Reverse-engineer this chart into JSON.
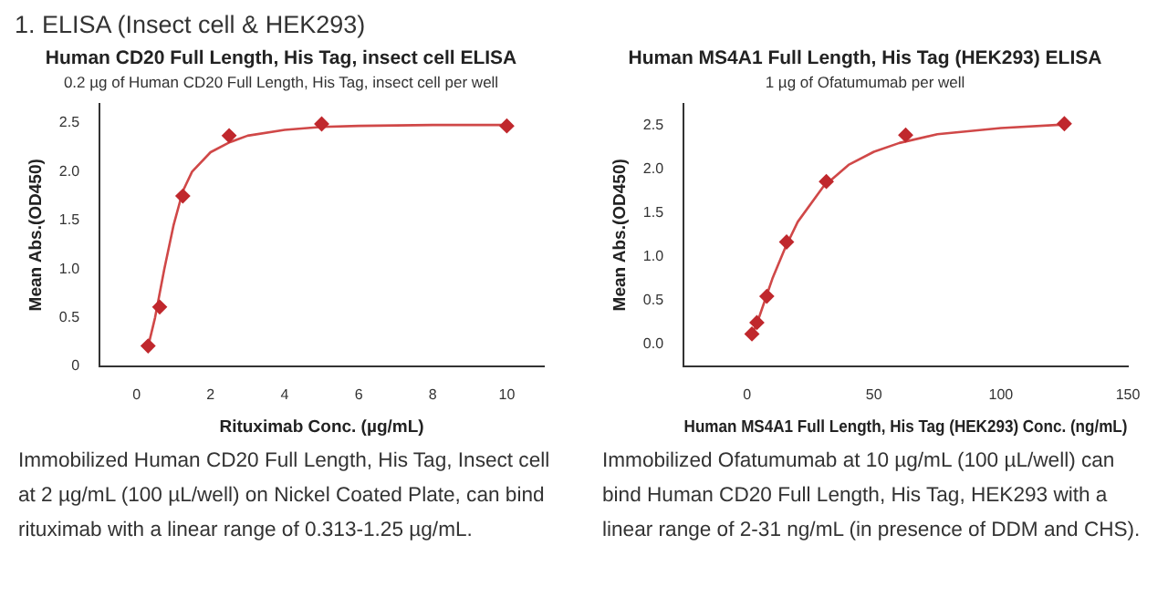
{
  "chart_data": [
    {
      "type": "scatter",
      "title": "Human CD20 Full Length, His Tag, insect cell ELISA",
      "subtitle": "0.2 µg of Human CD20 Full Length, His Tag, insect cell per well",
      "xlabel": "Rituximab Conc. (µg/mL)",
      "ylabel": "Mean Abs.(OD450)",
      "xlim": [
        -1,
        11
      ],
      "xticks": [
        0,
        2,
        4,
        6,
        8,
        10
      ],
      "ylim": [
        0,
        2.7
      ],
      "yticks": [
        0,
        {
          "value": 0.5,
          "label": "0.5"
        },
        {
          "value": 1,
          "label": "1.0"
        },
        {
          "value": 1.5,
          "label": "1.5"
        },
        {
          "value": 2,
          "label": "2.0"
        },
        {
          "value": 2.5,
          "label": "2.5"
        }
      ],
      "grid": false,
      "legend": false,
      "marker": "diamond",
      "annotations": [
        "1. ELISA (Insect cell & HEK293)",
        "Immobilized Human CD20 Full Length, His Tag, Insect cell at 2 µg/mL (100 µL/well) on Nickel Coated Plate, can bind rituximab with a linear range of 0.313-1.25 µg/mL."
      ],
      "series": [
        {
          "color": "#c0282d",
          "x": [
            0.3125,
            0.625,
            1.25,
            2.5,
            5,
            10
          ],
          "values": [
            0.21,
            0.61,
            1.75,
            2.37,
            2.49,
            2.47
          ]
        },
        {
          "type": "line",
          "marker": "none",
          "line_style": "solid",
          "color": "#d04848",
          "x": [
            0.31,
            0.5,
            0.75,
            1,
            1.25,
            1.5,
            2,
            2.5,
            3,
            4,
            5,
            6,
            8,
            10
          ],
          "values": [
            0.2,
            0.5,
            1,
            1.45,
            1.8,
            2,
            2.2,
            2.3,
            2.37,
            2.43,
            2.46,
            2.47,
            2.48,
            2.48
          ]
        }
      ]
    },
    {
      "type": "scatter",
      "title": "Human MS4A1 Full Length, His Tag (HEK293) ELISA",
      "subtitle": "1 µg of Ofatumumab per well",
      "xlabel": "Human MS4A1 Full Length, His Tag (HEK293) Conc. (ng/mL)",
      "ylabel": "Mean Abs.(OD450)",
      "xlim": [
        -25,
        150
      ],
      "xticks": [
        0,
        50,
        100,
        150
      ],
      "ylim": [
        -0.25,
        2.75
      ],
      "yticks": [
        {
          "value": 0,
          "label": "0.0"
        },
        {
          "value": 0.5,
          "label": "0.5"
        },
        {
          "value": 1,
          "label": "1.0"
        },
        {
          "value": 1.5,
          "label": "1.5"
        },
        {
          "value": 2,
          "label": "2.0"
        },
        {
          "value": 2.5,
          "label": "2.5"
        }
      ],
      "grid": false,
      "legend": false,
      "marker": "diamond",
      "annotations": [
        "Immobilized Ofatumumab at 10 µg/mL (100 µL/well) can bind Human CD20 Full Length, His Tag, HEK293 with a linear range of 2-31 ng/mL (in presence of DDM and CHS)."
      ],
      "series": [
        {
          "color": "#c0282d",
          "x": [
            1.95,
            3.9,
            7.8,
            15.6,
            31.25,
            62.5,
            125
          ],
          "values": [
            0.12,
            0.25,
            0.55,
            1.17,
            1.86,
            2.39,
            2.52
          ]
        },
        {
          "type": "line",
          "marker": "none",
          "line_style": "solid",
          "color": "#d04848",
          "x": [
            2,
            5,
            10,
            15,
            20,
            30,
            40,
            50,
            60,
            75,
            100,
            125
          ],
          "values": [
            0.1,
            0.33,
            0.75,
            1.1,
            1.4,
            1.8,
            2.05,
            2.2,
            2.3,
            2.4,
            2.47,
            2.51
          ]
        }
      ]
    }
  ]
}
